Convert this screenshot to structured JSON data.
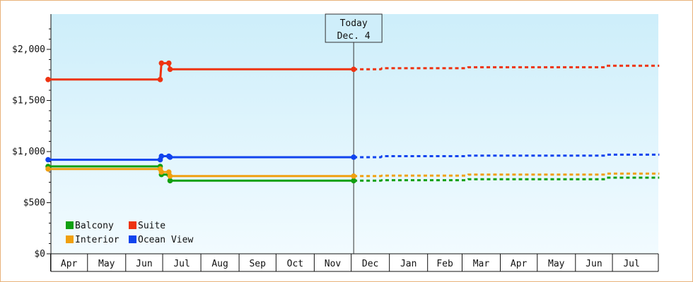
{
  "chart_data": {
    "type": "line",
    "title": "",
    "xlabel": "",
    "ylabel": "",
    "ylim": [
      0,
      2300
    ],
    "y_ticks": [
      0,
      500,
      1000,
      1500,
      2000
    ],
    "y_tick_labels": [
      "$0",
      "$500",
      "$1,000",
      "$1,500",
      "$2,000"
    ],
    "x_range": [
      "Mar 30",
      "Sep 1 (next year)"
    ],
    "months": [
      "Apr",
      "May",
      "Jun",
      "Jul",
      "Aug",
      "Sep",
      "Oct",
      "Nov",
      "Dec",
      "Jan",
      "Feb",
      "Mar",
      "Apr",
      "May",
      "Jun",
      "Jul"
    ],
    "grid": false,
    "legend_placement": "bottom-left",
    "today": {
      "line1": "Today",
      "line2": "Dec. 4",
      "day": 248
    },
    "series": [
      {
        "name": "Balcony",
        "color": "#11a011",
        "points": [
          [
            0,
            855
          ],
          [
            91,
            855
          ],
          [
            92,
            775
          ],
          [
            98,
            775
          ],
          [
            99,
            715
          ],
          [
            248,
            715
          ]
        ],
        "forecast": [
          [
            248,
            715
          ],
          [
            270,
            715
          ],
          [
            271,
            720
          ],
          [
            340,
            720
          ],
          [
            341,
            730
          ],
          [
            452,
            730
          ],
          [
            453,
            745
          ],
          [
            496,
            745
          ]
        ]
      },
      {
        "name": "Interior",
        "color": "#f0a010",
        "points": [
          [
            0,
            830
          ],
          [
            91,
            830
          ],
          [
            92,
            800
          ],
          [
            98,
            800
          ],
          [
            99,
            760
          ],
          [
            248,
            760
          ]
        ],
        "forecast": [
          [
            248,
            760
          ],
          [
            270,
            760
          ],
          [
            271,
            765
          ],
          [
            340,
            765
          ],
          [
            341,
            775
          ],
          [
            452,
            775
          ],
          [
            453,
            785
          ],
          [
            496,
            785
          ]
        ]
      },
      {
        "name": "Suite",
        "color": "#ee3311",
        "points": [
          [
            0,
            1705
          ],
          [
            91,
            1705
          ],
          [
            92,
            1865
          ],
          [
            98,
            1865
          ],
          [
            99,
            1805
          ],
          [
            248,
            1805
          ]
        ],
        "forecast": [
          [
            248,
            1805
          ],
          [
            270,
            1805
          ],
          [
            271,
            1815
          ],
          [
            340,
            1815
          ],
          [
            341,
            1825
          ],
          [
            452,
            1825
          ],
          [
            453,
            1840
          ],
          [
            496,
            1840
          ]
        ]
      },
      {
        "name": "Ocean View",
        "color": "#1144ee",
        "points": [
          [
            0,
            920
          ],
          [
            91,
            920
          ],
          [
            92,
            955
          ],
          [
            98,
            955
          ],
          [
            99,
            945
          ],
          [
            248,
            945
          ]
        ],
        "forecast": [
          [
            248,
            945
          ],
          [
            270,
            945
          ],
          [
            271,
            955
          ],
          [
            340,
            955
          ],
          [
            341,
            960
          ],
          [
            452,
            960
          ],
          [
            453,
            970
          ],
          [
            496,
            970
          ]
        ]
      }
    ],
    "legend": [
      {
        "label": "Balcony",
        "color": "#11a011"
      },
      {
        "label": "Suite",
        "color": "#ee3311"
      },
      {
        "label": "Interior",
        "color": "#f0a010"
      },
      {
        "label": "Ocean View",
        "color": "#1144ee"
      }
    ]
  }
}
